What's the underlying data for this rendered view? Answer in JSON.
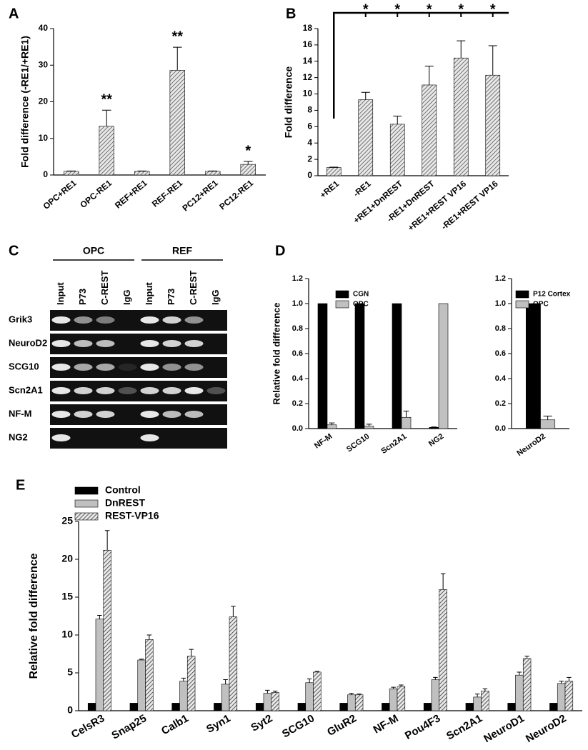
{
  "chart_data": [
    {
      "type": "bar",
      "panel": "A",
      "ylabel": "Fold difference (-RE1/+RE1)",
      "categories": [
        "OPC+RE1",
        "OPC-RE1",
        "REF+RE1",
        "REF-RE1",
        "PC12+RE1",
        "PC12-RE1"
      ],
      "values": [
        1,
        13.3,
        1,
        28.6,
        1,
        2.9
      ],
      "errors": [
        0.1,
        4.4,
        0.1,
        6.3,
        0.1,
        0.8
      ],
      "significance": [
        null,
        "**",
        null,
        "**",
        null,
        "*"
      ],
      "color": "#555555",
      "pattern": "hatch",
      "ylim": [
        0,
        40
      ],
      "yticks": [
        0,
        10,
        20,
        30,
        40
      ]
    },
    {
      "type": "bar",
      "panel": "B",
      "ylabel": "Fold difference",
      "categories": [
        "+RE1",
        "-RE1",
        "+RE1+DnREST",
        "-RE1+DnREST",
        "+RE1+REST VP16",
        "-RE1+REST VP16"
      ],
      "values": [
        1,
        9.3,
        6.3,
        11.1,
        14.4,
        12.3
      ],
      "errors": [
        0.05,
        0.9,
        1.0,
        2.3,
        2.1,
        3.6
      ],
      "significance": [
        null,
        "*",
        "*",
        "*",
        "*",
        "*"
      ],
      "significance_bracket": true,
      "color": "#555555",
      "pattern": "hatch",
      "ylim": [
        0,
        18
      ],
      "yticks": [
        0,
        2,
        4,
        6,
        8,
        10,
        12,
        14,
        16,
        18
      ]
    },
    {
      "type": "bar",
      "panel": "D",
      "ylabel": "Relative fold difference",
      "categories": [
        "NF-M",
        "SCG10",
        "Scn2A1",
        "NG2"
      ],
      "series": [
        {
          "name": "CGN",
          "color": "#000000",
          "values": [
            1,
            1,
            1,
            0.01
          ],
          "errors": [
            null,
            null,
            null,
            0.003
          ]
        },
        {
          "name": "OPC",
          "color": "#c0c0c0",
          "values": [
            0.03,
            0.02,
            0.09,
            1
          ],
          "errors": [
            0.015,
            0.015,
            0.05,
            null
          ]
        }
      ],
      "ylim": [
        0,
        1.2
      ],
      "yticks": [
        {
          "value": 0,
          "label": "0.0"
        },
        0.2,
        0.4,
        0.6,
        0.8,
        {
          "value": 1,
          "label": "1.0"
        },
        1.2
      ]
    },
    {
      "type": "bar",
      "categories": [
        "NeuroD2"
      ],
      "series": [
        {
          "name": "P12 Cortex",
          "color": "#000000",
          "values": [
            1
          ],
          "errors": [
            null
          ]
        },
        {
          "name": "OPC",
          "color": "#c0c0c0",
          "values": [
            0.07
          ],
          "errors": [
            0.03
          ]
        }
      ],
      "ylim": [
        0,
        1.2
      ],
      "yticks": [
        {
          "value": 0,
          "label": "0.0"
        },
        0.2,
        0.4,
        0.6,
        0.8,
        {
          "value": 1,
          "label": "1.0"
        },
        1.2
      ]
    },
    {
      "type": "bar",
      "panel": "E",
      "ylabel": "Relative fold difference",
      "categories": [
        "CelsR3",
        "Snap25",
        "Calb1",
        "Syn1",
        "Syt2",
        "SCG10",
        "GluR2",
        "NF-M",
        "Pou4F3",
        "Scn2A1",
        "NeuroD1",
        "NeuroD2"
      ],
      "series": [
        {
          "name": "Control",
          "color": "#000000",
          "values": [
            1,
            1,
            1,
            1,
            1,
            1,
            1,
            1,
            1,
            1,
            1,
            1
          ]
        },
        {
          "name": "DnREST",
          "color": "#c0c0c0",
          "values": [
            12.1,
            6.7,
            3.9,
            3.5,
            2.3,
            3.7,
            2.1,
            2.9,
            4.1,
            1.8,
            4.7,
            3.6
          ],
          "errors": [
            0.5,
            0.1,
            0.4,
            0.6,
            0.4,
            0.5,
            0.2,
            0.2,
            0.3,
            0.4,
            0.4,
            0.3
          ]
        },
        {
          "name": "REST-VP16",
          "color": "#333333",
          "pattern": "hatch",
          "values": [
            21.2,
            9.4,
            7.2,
            12.4,
            2.4,
            5.1,
            2.1,
            3.2,
            16.0,
            2.6,
            6.9,
            3.9
          ],
          "errors": [
            2.6,
            0.6,
            0.9,
            1.4,
            0.2,
            0.1,
            0.1,
            0.2,
            2.1,
            0.3,
            0.3,
            0.5
          ]
        }
      ],
      "legend": "top-left",
      "ylim": [
        0,
        25
      ],
      "yticks": [
        0,
        5,
        10,
        15,
        20,
        25
      ]
    }
  ],
  "gel": {
    "panel": "C",
    "groups": [
      "OPC",
      "REF"
    ],
    "lanes": [
      "Input",
      "P73",
      "C-REST",
      "IgG",
      "Input",
      "P73",
      "C-REST",
      "IgG"
    ],
    "rows": [
      "Grik3",
      "NeuroD2",
      "SCG10",
      "Scn2A1",
      "NF-M",
      "NG2"
    ]
  }
}
